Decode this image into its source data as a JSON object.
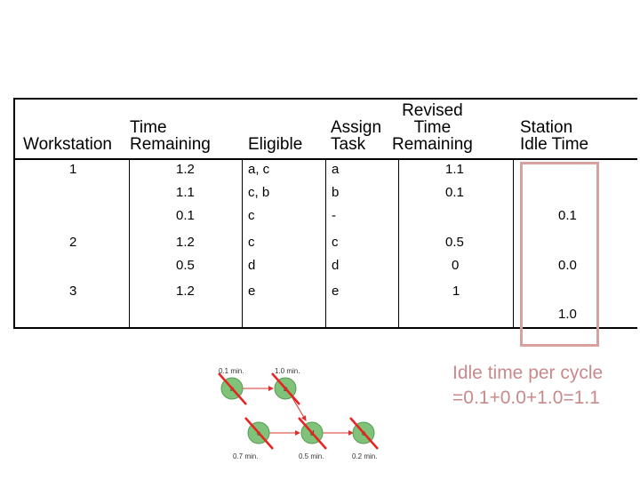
{
  "table": {
    "headers": {
      "workstation": "Workstation",
      "time_remaining": "Time\nRemaining",
      "eligible": "Eligible",
      "assign_task": "Assign\nTask",
      "revised_time_remaining": "Revised\nTime\nRemaining",
      "station_idle_time": "Station\nIdle Time"
    },
    "rows": [
      {
        "workstation": "1",
        "time_remaining": "1.2",
        "eligible": "a, c",
        "assign": "a",
        "revised": "1.1",
        "idle": ""
      },
      {
        "workstation": "",
        "time_remaining": "1.1",
        "eligible": "c, b",
        "assign": "b",
        "revised": "0.1",
        "idle": ""
      },
      {
        "workstation": "",
        "time_remaining": "0.1",
        "eligible": "c",
        "assign": "-",
        "revised": "",
        "idle": "0.1"
      },
      {
        "workstation": "2",
        "time_remaining": "1.2",
        "eligible": "c",
        "assign": "c",
        "revised": "0.5",
        "idle": ""
      },
      {
        "workstation": "",
        "time_remaining": "0.5",
        "eligible": "d",
        "assign": "d",
        "revised": "0",
        "idle": "0.0"
      },
      {
        "workstation": "3",
        "time_remaining": "1.2",
        "eligible": "e",
        "assign": "e",
        "revised": "1",
        "idle": ""
      },
      {
        "workstation": "",
        "time_remaining": "",
        "eligible": "",
        "assign": "",
        "revised": "",
        "idle": "1.0"
      }
    ]
  },
  "note": {
    "line1": "Idle time per cycle",
    "line2": "=0.1+0.0+1.0=1.1"
  },
  "diagram": {
    "nodes": [
      {
        "id": "a",
        "time": "0.1 min."
      },
      {
        "id": "b",
        "time": "1.0 min."
      },
      {
        "id": "c",
        "time": "0.7 min."
      },
      {
        "id": "d",
        "time": "0.5 min."
      },
      {
        "id": "e",
        "time": "0.2 min."
      }
    ],
    "node_color": "#7fc27a",
    "cross_color": "#e8231f",
    "arrow_color": "#d9302b"
  }
}
